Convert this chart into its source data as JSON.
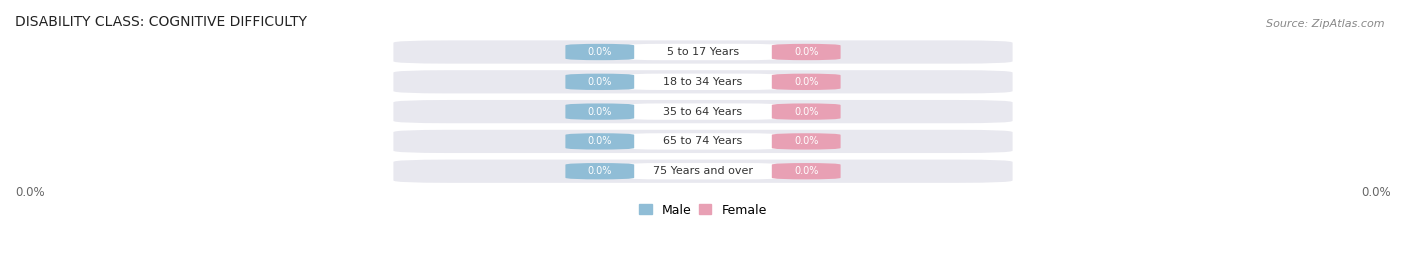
{
  "title": "DISABILITY CLASS: COGNITIVE DIFFICULTY",
  "source": "Source: ZipAtlas.com",
  "categories": [
    "5 to 17 Years",
    "18 to 34 Years",
    "35 to 64 Years",
    "65 to 74 Years",
    "75 Years and over"
  ],
  "male_values": [
    0.0,
    0.0,
    0.0,
    0.0,
    0.0
  ],
  "female_values": [
    0.0,
    0.0,
    0.0,
    0.0,
    0.0
  ],
  "male_color": "#90bdd6",
  "female_color": "#e8a0b4",
  "row_bg_color": "#e8e8ef",
  "title_fontsize": 10,
  "source_fontsize": 8,
  "tick_label": "0.0%",
  "figsize": [
    14.06,
    2.69
  ],
  "dpi": 100,
  "legend_male": "Male",
  "legend_female": "Female"
}
